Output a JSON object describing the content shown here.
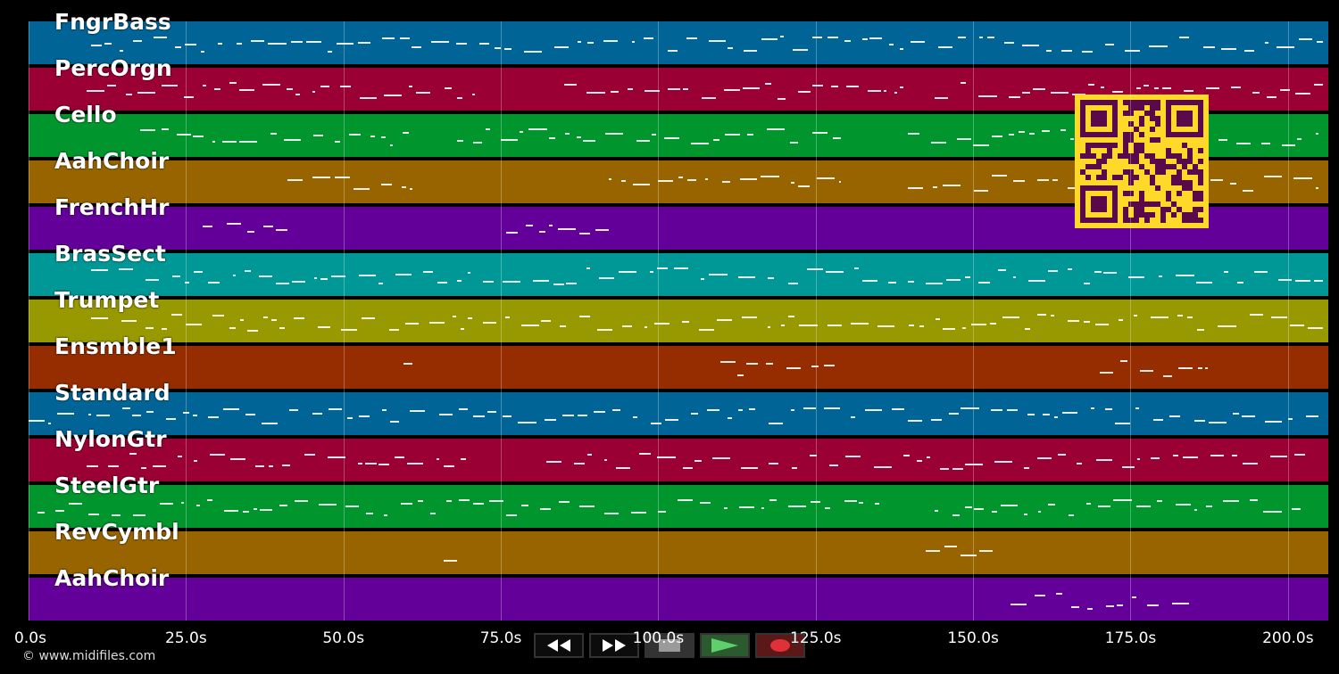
{
  "tracks": [
    {
      "name": "FngrBass",
      "color": "#006497"
    },
    {
      "name": "PercOrgn",
      "color": "#9a0034"
    },
    {
      "name": "Cello",
      "color": "#00962d"
    },
    {
      "name": "AahChoir",
      "color": "#976400"
    },
    {
      "name": "FrenchHr",
      "color": "#64009a"
    },
    {
      "name": "BrasSect",
      "color": "#009797"
    },
    {
      "name": "Trumpet",
      "color": "#989800"
    },
    {
      "name": "Ensmble1",
      "color": "#962d00"
    },
    {
      "name": "Standard",
      "color": "#006497"
    },
    {
      "name": "NylonGtr",
      "color": "#9a0034"
    },
    {
      "name": "SteelGtr",
      "color": "#00962d"
    },
    {
      "name": "RevCymbl",
      "color": "#976400"
    },
    {
      "name": "AahChoir",
      "color": "#64009a"
    }
  ],
  "time_axis": {
    "ticks": [
      "0.0s",
      "25.0s",
      "50.0s",
      "75.0s",
      "100.0s",
      "125.0s",
      "150.0s",
      "175.0s",
      "200.0s"
    ],
    "tick_values": [
      0,
      25,
      50,
      75,
      100,
      125,
      150,
      175,
      200
    ],
    "max_seconds": 206.4
  },
  "transport": [
    {
      "name": "rewind",
      "icon": "rewind-icon"
    },
    {
      "name": "fast-forward",
      "icon": "fast-forward-icon"
    },
    {
      "name": "stop",
      "icon": "stop-icon"
    },
    {
      "name": "play",
      "icon": "play-icon"
    },
    {
      "name": "record",
      "icon": "record-icon"
    }
  ],
  "footer": {
    "copyright": "© www.midifiles.com"
  },
  "colors": {
    "background": "#000000",
    "qr": "#ffd92a",
    "qr_dark": "#5a0a4a",
    "play": "#5fcf6b",
    "record": "#e0303a"
  }
}
